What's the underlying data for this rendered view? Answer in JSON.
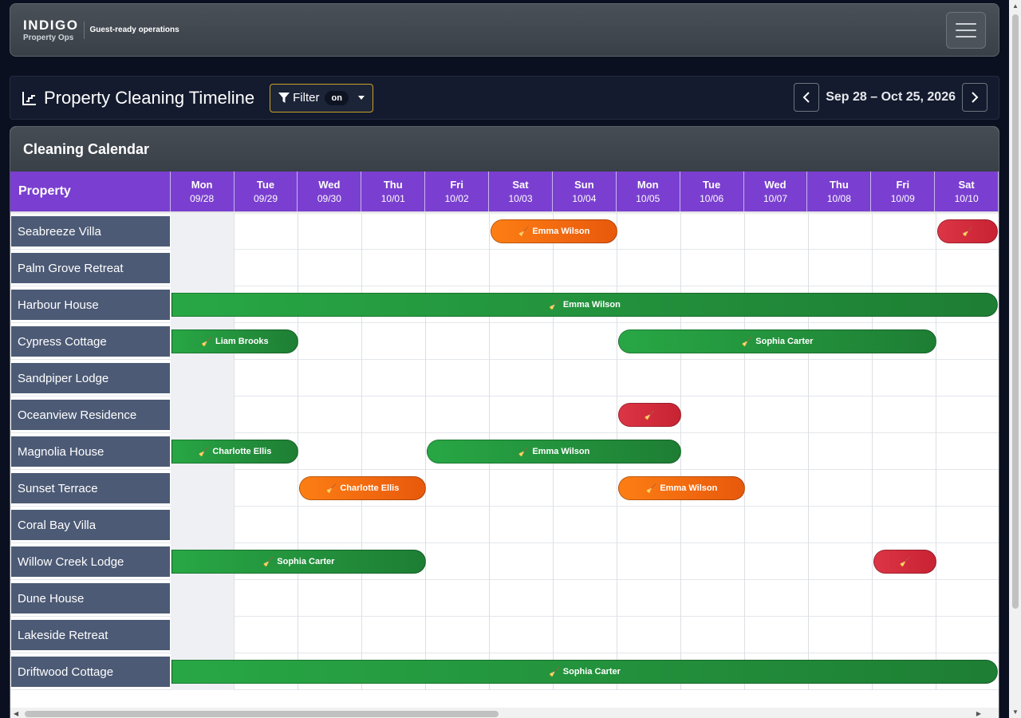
{
  "navbar": {
    "brand_title": "INDIGO",
    "brand_sub": "Property Ops",
    "brand_tag": "Guest-ready operations"
  },
  "toolbar": {
    "title": "Property Cleaning Timeline",
    "filter_label": "Filter",
    "filter_badge": "on",
    "date_range": "Sep 28 – Oct 25, 2026"
  },
  "calendar": {
    "title": "Cleaning Calendar",
    "property_header": "Property",
    "days": [
      {
        "name": "Mon",
        "date": "09/28"
      },
      {
        "name": "Tue",
        "date": "09/29"
      },
      {
        "name": "Wed",
        "date": "09/30"
      },
      {
        "name": "Thu",
        "date": "10/01"
      },
      {
        "name": "Fri",
        "date": "10/02"
      },
      {
        "name": "Sat",
        "date": "10/03"
      },
      {
        "name": "Sun",
        "date": "10/04"
      },
      {
        "name": "Mon",
        "date": "10/05"
      },
      {
        "name": "Tue",
        "date": "10/06"
      },
      {
        "name": "Wed",
        "date": "10/07"
      },
      {
        "name": "Thu",
        "date": "10/08"
      },
      {
        "name": "Fri",
        "date": "10/09"
      },
      {
        "name": "Sat",
        "date": "10/10"
      }
    ],
    "properties": [
      {
        "name": "Seabreeze Villa",
        "bookings": [
          {
            "start": 5,
            "span": 2,
            "status": "orange",
            "cleaner": "Emma Wilson"
          },
          {
            "start": 12,
            "span": 1,
            "status": "red",
            "cleaner": ""
          }
        ]
      },
      {
        "name": "Palm Grove Retreat",
        "bookings": []
      },
      {
        "name": "Harbour House",
        "bookings": [
          {
            "start": 0,
            "span": 13,
            "status": "green",
            "cleaner": "Emma Wilson"
          }
        ]
      },
      {
        "name": "Cypress Cottage",
        "bookings": [
          {
            "start": 0,
            "span": 2,
            "status": "green",
            "cleaner": "Liam Brooks"
          },
          {
            "start": 7,
            "span": 5,
            "status": "green",
            "cleaner": "Sophia Carter"
          }
        ]
      },
      {
        "name": "Sandpiper Lodge",
        "bookings": []
      },
      {
        "name": "Oceanview Residence",
        "bookings": [
          {
            "start": 7,
            "span": 1,
            "status": "red",
            "cleaner": ""
          }
        ]
      },
      {
        "name": "Magnolia House",
        "bookings": [
          {
            "start": 0,
            "span": 2,
            "status": "green",
            "cleaner": "Charlotte Ellis"
          },
          {
            "start": 4,
            "span": 4,
            "status": "green",
            "cleaner": "Emma Wilson"
          }
        ]
      },
      {
        "name": "Sunset Terrace",
        "bookings": [
          {
            "start": 2,
            "span": 2,
            "status": "orange",
            "cleaner": "Charlotte Ellis"
          },
          {
            "start": 7,
            "span": 2,
            "status": "orange",
            "cleaner": "Emma Wilson"
          }
        ]
      },
      {
        "name": "Coral Bay Villa",
        "bookings": []
      },
      {
        "name": "Willow Creek Lodge",
        "bookings": [
          {
            "start": 0,
            "span": 4,
            "status": "green",
            "cleaner": "Sophia Carter"
          },
          {
            "start": 11,
            "span": 1,
            "status": "red",
            "cleaner": ""
          }
        ]
      },
      {
        "name": "Dune House",
        "bookings": []
      },
      {
        "name": "Lakeside Retreat",
        "bookings": []
      },
      {
        "name": "Driftwood Cottage",
        "bookings": [
          {
            "start": 0,
            "span": 13,
            "status": "green",
            "cleaner": "Sophia Carter"
          }
        ]
      }
    ]
  },
  "colors": {
    "green": "#28a745",
    "orange": "#fd7e14",
    "red": "#dc3545",
    "header_purple": "#7a3fd0",
    "property_cell": "#4c5a75",
    "filter_border": "#c9a227"
  },
  "icons": {
    "chart": "chart-line-icon",
    "filter": "funnel-icon",
    "booking": "broom-icon",
    "prev": "chevron-left-icon",
    "next": "chevron-right-icon",
    "menu": "hamburger-menu-icon"
  }
}
